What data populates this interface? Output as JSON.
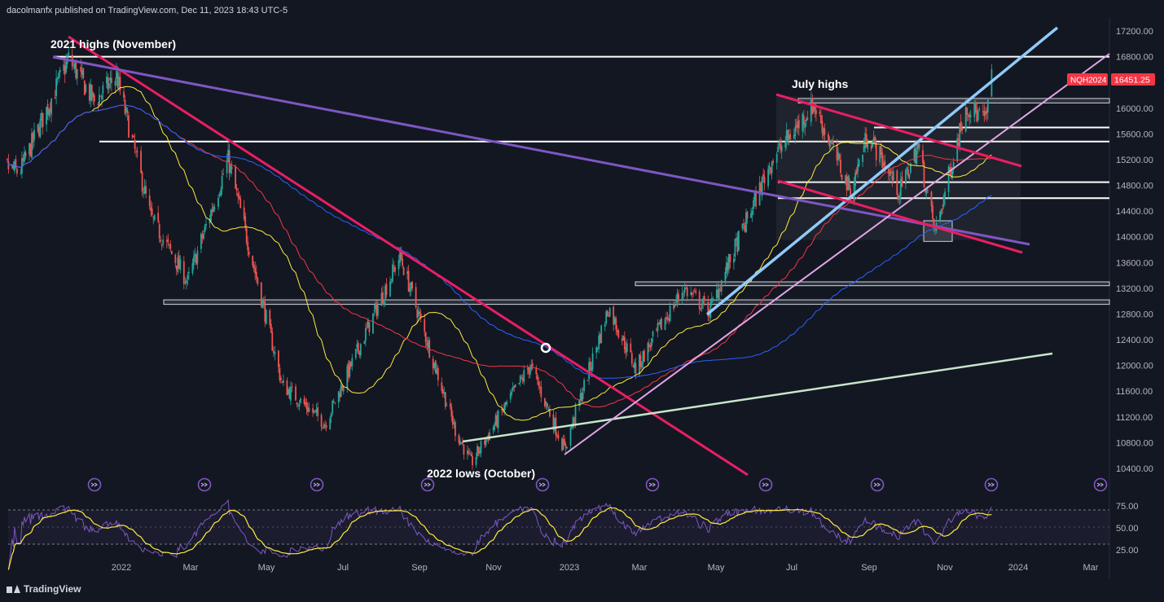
{
  "header": {
    "published_by": "dacolmanfx published on TradingView.com, Dec 11, 2023 18:43 UTC-5"
  },
  "footer": {
    "brand": "TradingView"
  },
  "chart_data": [
    {
      "type": "candlestick",
      "symbol": "NQH2024",
      "last_price": "16451.25",
      "y_axis_ticks": [
        "17200.00",
        "16800.00",
        "16000.00",
        "15600.00",
        "15200.00",
        "14800.00",
        "14400.00",
        "14000.00",
        "13600.00",
        "13200.00",
        "12800.00",
        "12400.00",
        "12000.00",
        "11600.00",
        "11200.00",
        "10800.00",
        "10400.00"
      ],
      "ylim": [
        10200,
        17600
      ],
      "x_axis_ticks": [
        "2022",
        "Mar",
        "May",
        "Jul",
        "Sep",
        "Nov",
        "2023",
        "Mar",
        "May",
        "Jul",
        "Sep",
        "Nov",
        "2024",
        "Mar"
      ],
      "annotations": [
        "2021 highs (November)",
        "July highs",
        "2022 lows (October)"
      ],
      "horizontal_levels": [
        16800,
        15480,
        15700,
        14850,
        14600
      ],
      "zones": [
        {
          "from": 16080,
          "to": 16150
        },
        {
          "from": 13240,
          "to": 13300
        },
        {
          "from": 12950,
          "to": 13020
        },
        {
          "from": 13930,
          "to": 14250
        }
      ],
      "key_points": [
        {
          "date": "2021-11-19",
          "value": 16766,
          "label": "2021 highs (November)"
        },
        {
          "date": "2022-10-13",
          "value": 10480,
          "label": "2022 lows (October)"
        },
        {
          "date": "2023-07-19",
          "value": 16060,
          "label": "July highs"
        },
        {
          "date": "2023-10-26",
          "value": 14060
        },
        {
          "date": "2023-12-11",
          "value": 16451
        }
      ],
      "moving_averages": [
        "yellow",
        "red",
        "blue"
      ],
      "colors": {
        "background": "#131722",
        "up": "#26a69a",
        "down": "#ef5350",
        "price_badge": "#f23645"
      }
    },
    {
      "type": "line",
      "indicator": "RSI",
      "y_axis_ticks": [
        "75.00",
        "50.00",
        "25.00"
      ],
      "ylim": [
        15,
        85
      ],
      "levels": [
        70,
        30
      ]
    }
  ]
}
